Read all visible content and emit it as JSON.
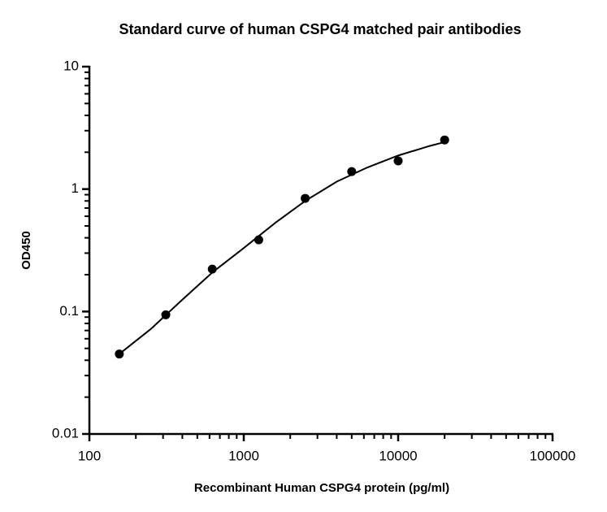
{
  "chart_data": {
    "type": "scatter",
    "title": "Standard curve of human CSPG4 matched pair antibodies",
    "x_label": "Recombinant Human CSPG4 protein (pg/ml)",
    "y_label": "OD450",
    "x_scale": "log",
    "y_scale": "log",
    "xlim": [
      100,
      100000
    ],
    "ylim": [
      0.01,
      10
    ],
    "xticks": [
      100,
      1000,
      10000,
      100000
    ],
    "yticks": [
      0.01,
      0.1,
      1,
      10
    ],
    "xminor": [
      200,
      300,
      400,
      500,
      600,
      700,
      800,
      900,
      2000,
      3000,
      4000,
      5000,
      6000,
      7000,
      8000,
      9000,
      20000,
      30000,
      40000,
      50000,
      60000,
      70000,
      80000,
      90000
    ],
    "yminor": [
      0.02,
      0.03,
      0.04,
      0.05,
      0.06,
      0.07,
      0.08,
      0.09,
      0.2,
      0.3,
      0.4,
      0.5,
      0.6,
      0.7,
      0.8,
      0.9,
      2,
      3,
      4,
      5,
      6,
      7,
      8,
      9
    ],
    "grid": false,
    "series": [
      {
        "style": "markers",
        "color": "#000000",
        "x": [
          156.25,
          312.5,
          625,
          1250,
          2500,
          5000,
          10000,
          20000
        ],
        "values": [
          0.045,
          0.094,
          0.222,
          0.385,
          0.84,
          1.39,
          1.7,
          2.52
        ]
      },
      {
        "style": "line",
        "color": "#000000",
        "x": [
          156.25,
          250,
          400,
          630,
          1000,
          1600,
          2500,
          4000,
          6300,
          10000,
          16000,
          20000
        ],
        "values": [
          0.045,
          0.072,
          0.125,
          0.21,
          0.33,
          0.53,
          0.8,
          1.15,
          1.5,
          1.88,
          2.25,
          2.42
        ]
      }
    ]
  }
}
